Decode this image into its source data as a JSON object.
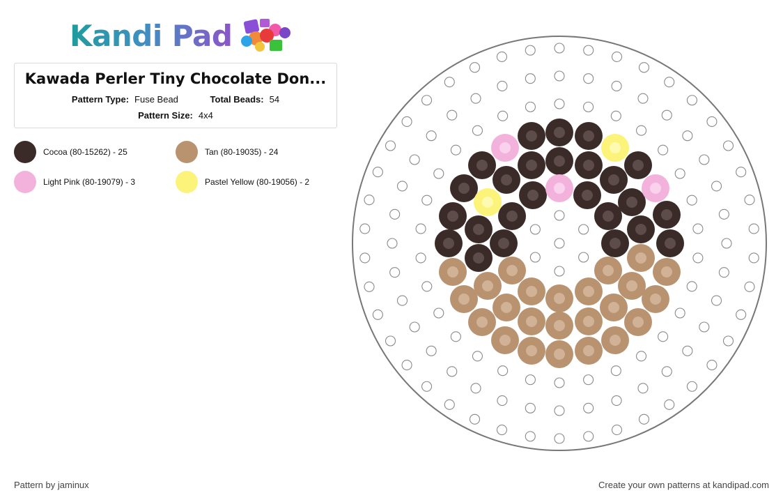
{
  "brand": {
    "logo_text": "Kandi Pad"
  },
  "pattern": {
    "title": "Kawada Perler Tiny Chocolate Don...",
    "type_label": "Pattern Type:",
    "type_value": "Fuse Bead",
    "beads_label": "Total Beads:",
    "beads_value": "54",
    "size_label": "Pattern Size:",
    "size_value": "4x4"
  },
  "legend": [
    {
      "label": "Cocoa (80-15262) - 25",
      "color": "#3a2a28"
    },
    {
      "label": "Tan (80-19035) - 24",
      "color": "#b99270"
    },
    {
      "label": "Light Pink (80-19079) - 3",
      "color": "#f3b2dc"
    },
    {
      "label": "Pastel Yellow (80-19056) - 2",
      "color": "#fcf47a"
    }
  ],
  "footer": {
    "author": "Pattern by jaminux",
    "cta": "Create your own patterns at kandipad.com"
  },
  "board": {
    "shape": "round",
    "beads": {
      "cocoa": [
        [
          763,
          195
        ],
        [
          803,
          190
        ],
        [
          845,
          195
        ],
        [
          692,
          237
        ],
        [
          727,
          258
        ],
        [
          763,
          237
        ],
        [
          803,
          231
        ],
        [
          845,
          237
        ],
        [
          881,
          258
        ],
        [
          916,
          237
        ],
        [
          666,
          270
        ],
        [
          765,
          280
        ],
        [
          843,
          280
        ],
        [
          907,
          290
        ],
        [
          650,
          310
        ],
        [
          735,
          310
        ],
        [
          873,
          310
        ],
        [
          957,
          308
        ],
        [
          687,
          329
        ],
        [
          920,
          329
        ],
        [
          644,
          349
        ],
        [
          723,
          349
        ],
        [
          883,
          349
        ],
        [
          962,
          349
        ],
        [
          687,
          370
        ]
      ],
      "tan": [
        [
          650,
          390
        ],
        [
          735,
          388
        ],
        [
          873,
          388
        ],
        [
          920,
          370
        ],
        [
          957,
          390
        ],
        [
          700,
          410
        ],
        [
          763,
          418
        ],
        [
          803,
          428
        ],
        [
          845,
          418
        ],
        [
          907,
          410
        ],
        [
          666,
          429
        ],
        [
          727,
          441
        ],
        [
          881,
          441
        ],
        [
          941,
          429
        ],
        [
          692,
          462
        ],
        [
          763,
          461
        ],
        [
          803,
          467
        ],
        [
          845,
          461
        ],
        [
          916,
          462
        ],
        [
          725,
          488
        ],
        [
          763,
          503
        ],
        [
          803,
          508
        ],
        [
          845,
          503
        ],
        [
          883,
          488
        ]
      ],
      "pink": [
        [
          725,
          212
        ],
        [
          803,
          270
        ],
        [
          941,
          270
        ]
      ],
      "yellow": [
        [
          883,
          212
        ],
        [
          700,
          290
        ]
      ]
    }
  }
}
